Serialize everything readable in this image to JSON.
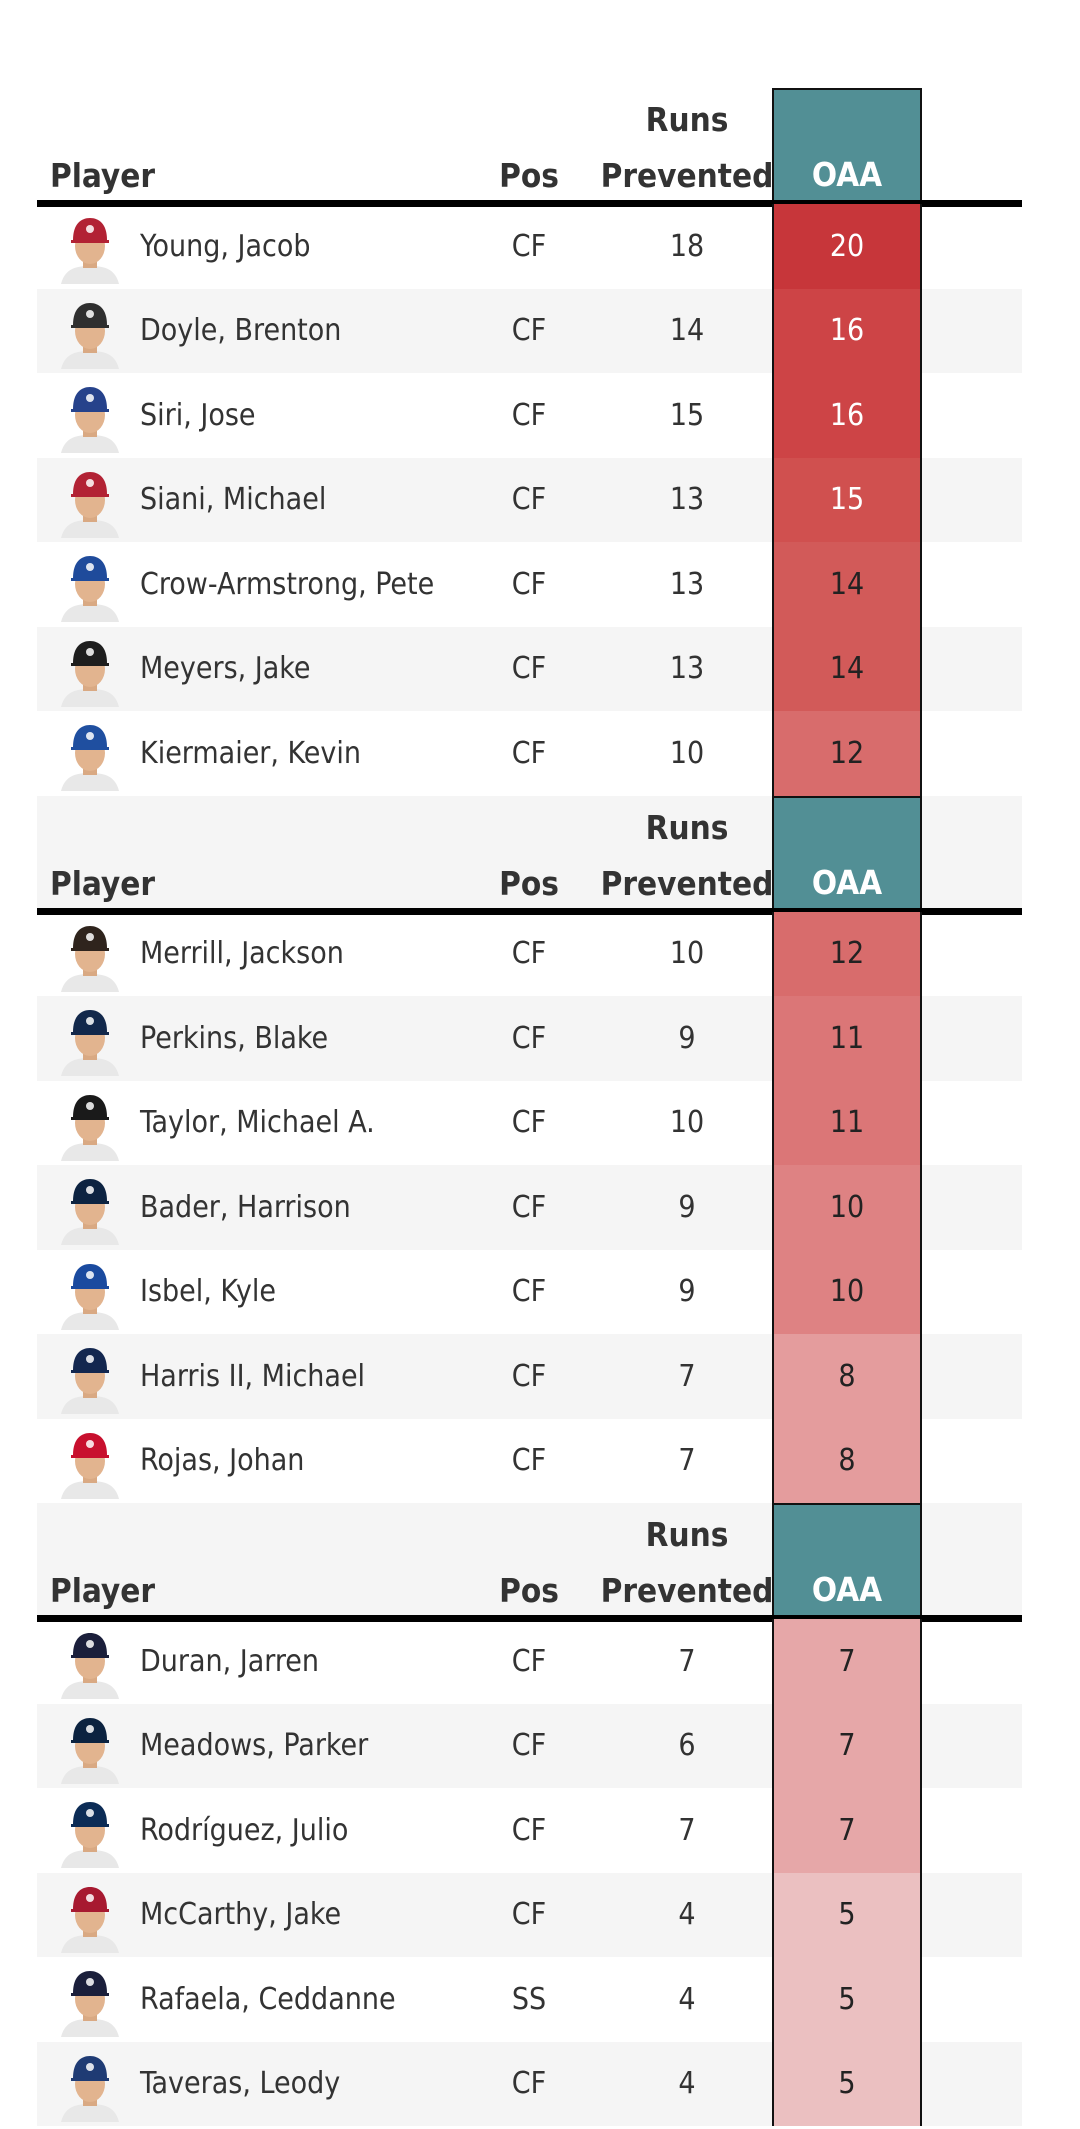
{
  "columns": {
    "player": "Player",
    "pos": "Pos",
    "runs_line1": "Runs",
    "runs_line2": "Prevented",
    "oaa": "OAA"
  },
  "colors": {
    "oaa_header": "#528f95",
    "row_alt": "#f5f5f5"
  },
  "groups": [
    {
      "rows": [
        {
          "name": "Young, Jacob",
          "pos": "CF",
          "runs": "18",
          "oaa": "20",
          "cap": "#b22234",
          "color": "#c7363a"
        },
        {
          "name": "Doyle, Brenton",
          "pos": "CF",
          "runs": "14",
          "oaa": "16",
          "cap": "#2f2f2f",
          "color": "#cd4446"
        },
        {
          "name": "Siri, Jose",
          "pos": "CF",
          "runs": "15",
          "oaa": "16",
          "cap": "#26428b",
          "color": "#cd4446"
        },
        {
          "name": "Siani, Michael",
          "pos": "CF",
          "runs": "13",
          "oaa": "15",
          "cap": "#b22234",
          "color": "#d0504f"
        },
        {
          "name": "Crow-Armstrong, Pete",
          "pos": "CF",
          "runs": "13",
          "oaa": "14",
          "cap": "#1f4b9b",
          "color": "#d25a59"
        },
        {
          "name": "Meyers, Jake",
          "pos": "CF",
          "runs": "13",
          "oaa": "14",
          "cap": "#1e1e1e",
          "color": "#d25a59"
        },
        {
          "name": "Kiermaier, Kevin",
          "pos": "CF",
          "runs": "10",
          "oaa": "12",
          "cap": "#1f4fa0",
          "color": "#d86c6c"
        }
      ]
    },
    {
      "rows": [
        {
          "name": "Merrill, Jackson",
          "pos": "CF",
          "runs": "10",
          "oaa": "12",
          "cap": "#2f241d",
          "color": "#d86c6c"
        },
        {
          "name": "Perkins, Blake",
          "pos": "CF",
          "runs": "9",
          "oaa": "11",
          "cap": "#12284b",
          "color": "#db7677"
        },
        {
          "name": "Taylor, Michael A.",
          "pos": "CF",
          "runs": "10",
          "oaa": "11",
          "cap": "#1a1a1a",
          "color": "#db7677"
        },
        {
          "name": "Bader, Harrison",
          "pos": "CF",
          "runs": "9",
          "oaa": "10",
          "cap": "#0c2341",
          "color": "#de8283"
        },
        {
          "name": "Isbel, Kyle",
          "pos": "CF",
          "runs": "9",
          "oaa": "10",
          "cap": "#1a4a9f",
          "color": "#de8283"
        },
        {
          "name": "Harris II, Michael",
          "pos": "CF",
          "runs": "7",
          "oaa": "8",
          "cap": "#13274f",
          "color": "#e49c9d"
        },
        {
          "name": "Rojas, Johan",
          "pos": "CF",
          "runs": "7",
          "oaa": "8",
          "cap": "#c8102e",
          "color": "#e49c9d"
        }
      ]
    },
    {
      "rows": [
        {
          "name": "Duran, Jarren",
          "pos": "CF",
          "runs": "7",
          "oaa": "7",
          "cap": "#1b1f3b",
          "color": "#e6a7a8"
        },
        {
          "name": "Meadows, Parker",
          "pos": "CF",
          "runs": "6",
          "oaa": "7",
          "cap": "#0c2340",
          "color": "#e6a7a8"
        },
        {
          "name": "Rodríguez, Julio",
          "pos": "CF",
          "runs": "7",
          "oaa": "7",
          "cap": "#0c2c56",
          "color": "#e6a7a8"
        },
        {
          "name": "McCarthy, Jake",
          "pos": "CF",
          "runs": "4",
          "oaa": "5",
          "cap": "#a71930",
          "color": "#ebc0c1"
        },
        {
          "name": "Rafaela, Ceddanne",
          "pos": "SS",
          "runs": "4",
          "oaa": "5",
          "cap": "#1b1f3b",
          "color": "#ebc0c1"
        },
        {
          "name": "Taveras, Leody",
          "pos": "CF",
          "runs": "4",
          "oaa": "5",
          "cap": "#1f3b74",
          "color": "#ebc0c1"
        }
      ]
    }
  ]
}
